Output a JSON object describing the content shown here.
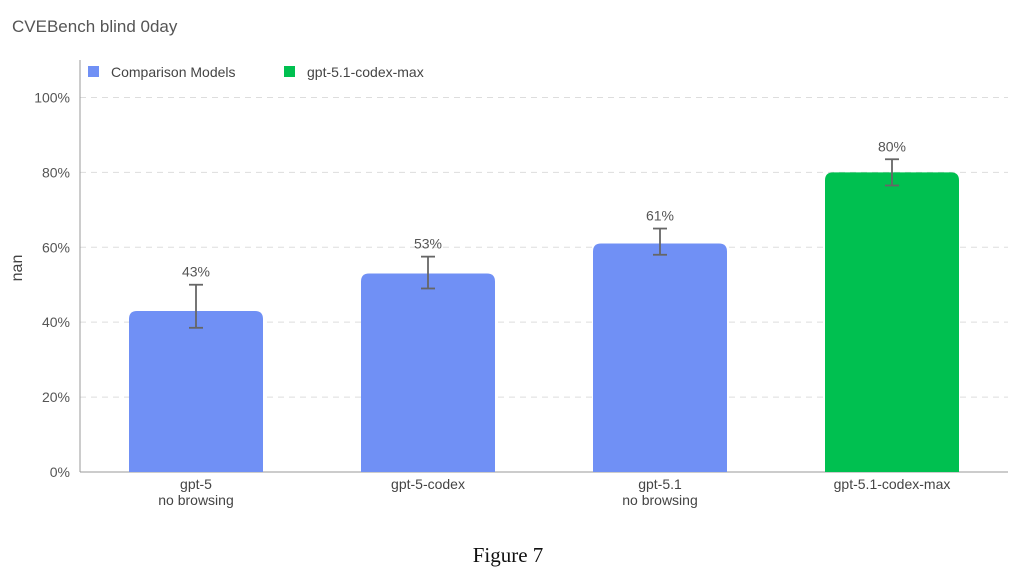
{
  "chart_data": {
    "type": "bar",
    "title": "CVEBench blind 0day",
    "ylabel": "nan",
    "xlabel": "",
    "ylim": [
      0,
      110
    ],
    "yticks": [
      0,
      20,
      40,
      60,
      80,
      100
    ],
    "ytick_labels": [
      "0%",
      "20%",
      "40%",
      "60%",
      "80%",
      "100%"
    ],
    "grid": true,
    "legend_placement": "top-left",
    "categories": [
      [
        "gpt-5",
        "no browsing"
      ],
      [
        "gpt-5-codex"
      ],
      [
        "gpt-5.1",
        "no browsing"
      ],
      [
        "gpt-5.1-codex-max"
      ]
    ],
    "series": [
      {
        "name": "Comparison Models",
        "color": "#7090f5"
      },
      {
        "name": "gpt-5.1-codex-max",
        "color": "#00c050"
      }
    ],
    "bars": [
      {
        "value": 43,
        "series": 0,
        "label": "43%",
        "err_low": 38.5,
        "err_high": 50
      },
      {
        "value": 53,
        "series": 0,
        "label": "53%",
        "err_low": 49,
        "err_high": 57.5
      },
      {
        "value": 61,
        "series": 0,
        "label": "61%",
        "err_low": 58,
        "err_high": 65
      },
      {
        "value": 80,
        "series": 1,
        "label": "80%",
        "err_low": 76.5,
        "err_high": 83.5
      }
    ]
  },
  "caption": "Figure 7",
  "colors": {
    "axis": "#999999",
    "grid": "#dddddd",
    "errorbar": "#666666"
  }
}
